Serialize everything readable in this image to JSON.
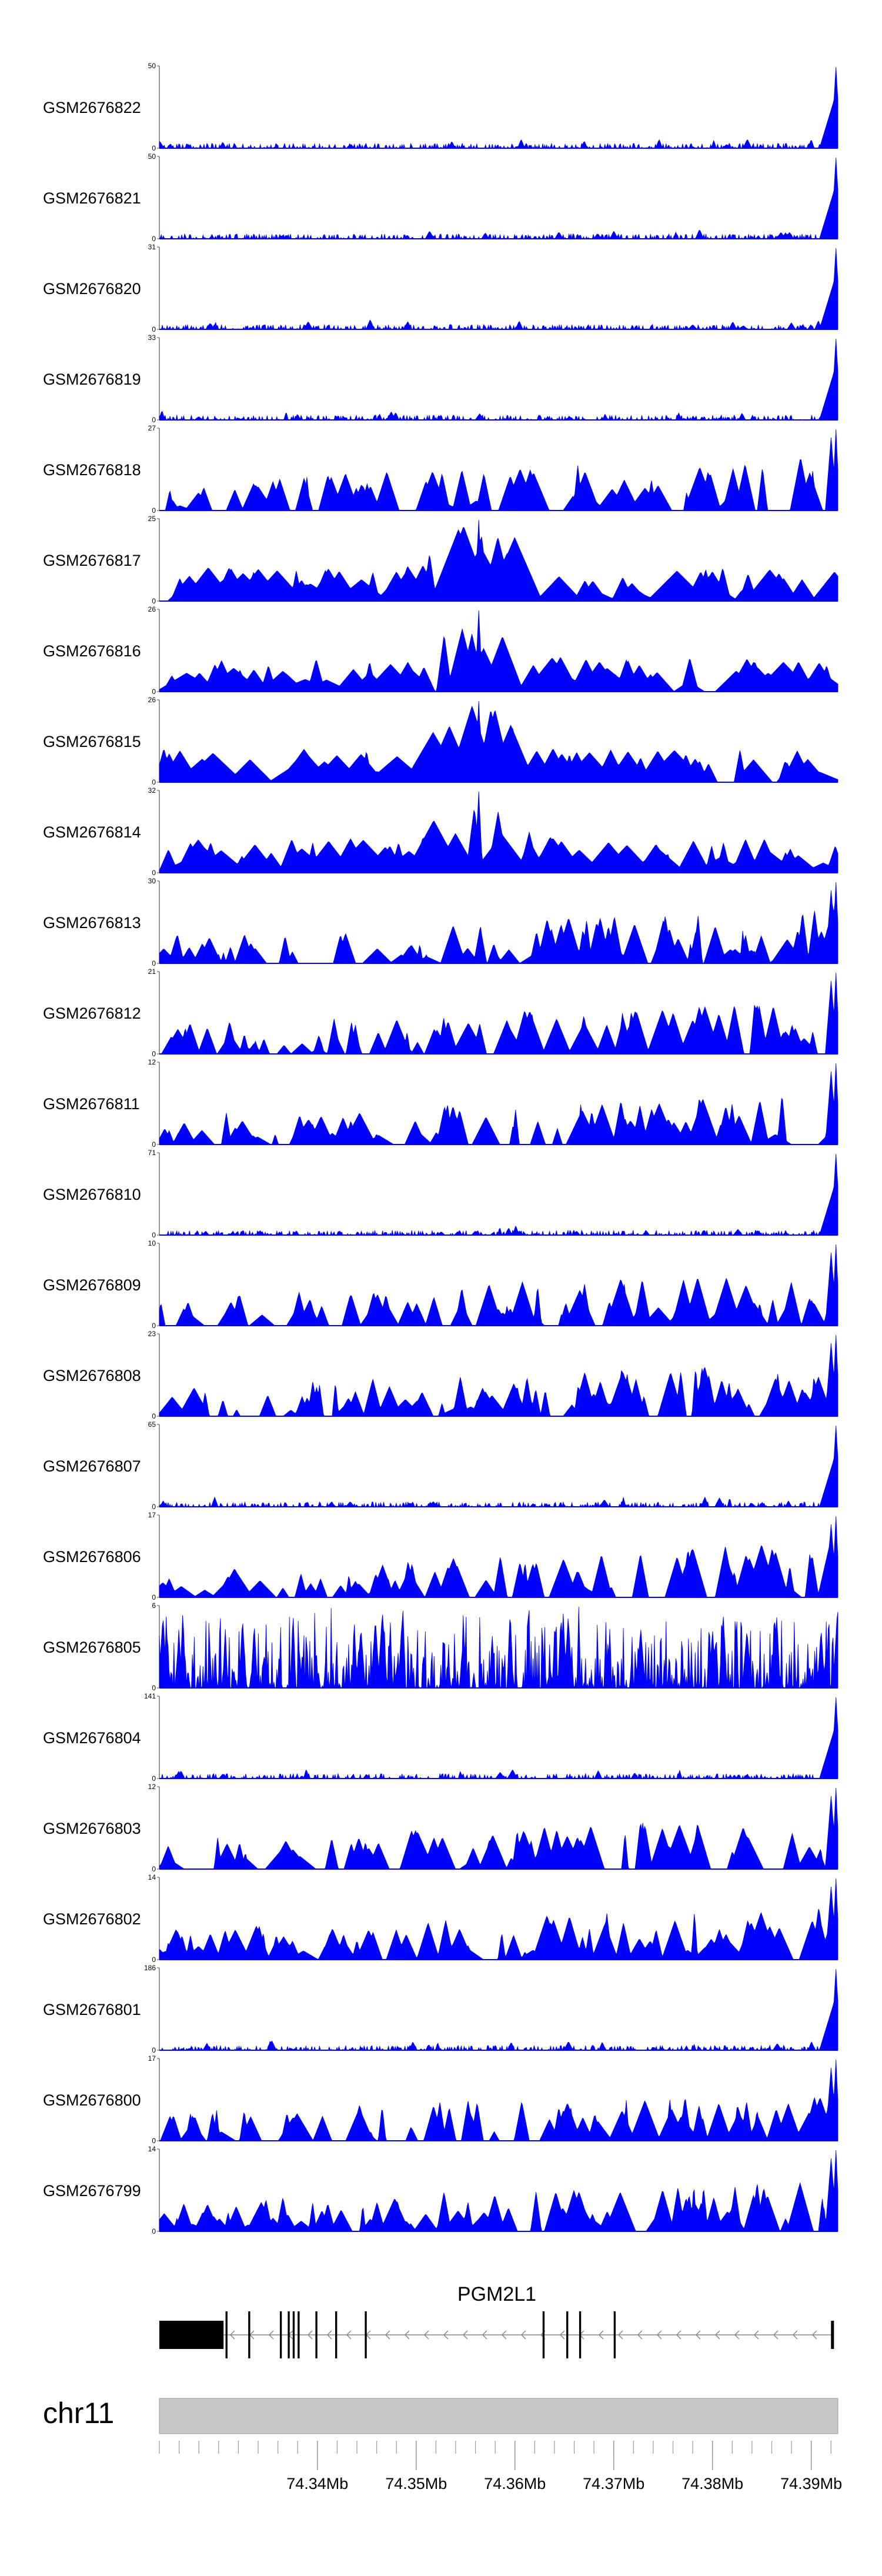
{
  "chart_data": {
    "type": "area",
    "color": "#0000ff",
    "x_range_mb": [
      74.324,
      74.3927
    ],
    "tracks": [
      {
        "name": "GSM2676822",
        "ymax": "50",
        "ymin": "0",
        "max": 50,
        "profile": "rightpeak",
        "seed": 11
      },
      {
        "name": "GSM2676821",
        "ymax": "50",
        "ymin": "0",
        "max": 50,
        "profile": "rightpeak",
        "seed": 12
      },
      {
        "name": "GSM2676820",
        "ymax": "31",
        "ymin": "0",
        "max": 31,
        "profile": "rightpeak",
        "seed": 13
      },
      {
        "name": "GSM2676819",
        "ymax": "33",
        "ymin": "0",
        "max": 33,
        "profile": "rightpeak",
        "seed": 14
      },
      {
        "name": "GSM2676818",
        "ymax": "27",
        "ymin": "0",
        "max": 27,
        "profile": "spiky",
        "seed": 15
      },
      {
        "name": "GSM2676817",
        "ymax": "25",
        "ymin": "0",
        "max": 25,
        "profile": "center",
        "seed": 16
      },
      {
        "name": "GSM2676816",
        "ymax": "26",
        "ymin": "0",
        "max": 26,
        "profile": "center",
        "seed": 17
      },
      {
        "name": "GSM2676815",
        "ymax": "26",
        "ymin": "0",
        "max": 26,
        "profile": "center",
        "seed": 18
      },
      {
        "name": "GSM2676814",
        "ymax": "32",
        "ymin": "0",
        "max": 32,
        "profile": "center",
        "seed": 19
      },
      {
        "name": "GSM2676813",
        "ymax": "30",
        "ymin": "0",
        "max": 30,
        "profile": "spiky",
        "seed": 20
      },
      {
        "name": "GSM2676812",
        "ymax": "21",
        "ymin": "0",
        "max": 21,
        "profile": "spiky",
        "seed": 21
      },
      {
        "name": "GSM2676811",
        "ymax": "12",
        "ymin": "0",
        "max": 12,
        "profile": "spiky",
        "seed": 22
      },
      {
        "name": "GSM2676810",
        "ymax": "71",
        "ymin": "0",
        "max": 71,
        "profile": "rightpeak",
        "seed": 23
      },
      {
        "name": "GSM2676809",
        "ymax": "10",
        "ymin": "0",
        "max": 10,
        "profile": "spiky",
        "seed": 24
      },
      {
        "name": "GSM2676808",
        "ymax": "23",
        "ymin": "0",
        "max": 23,
        "profile": "spiky",
        "seed": 25
      },
      {
        "name": "GSM2676807",
        "ymax": "65",
        "ymin": "0",
        "max": 65,
        "profile": "rightpeak",
        "seed": 26
      },
      {
        "name": "GSM2676806",
        "ymax": "17",
        "ymin": "0",
        "max": 17,
        "profile": "spiky",
        "seed": 27
      },
      {
        "name": "GSM2676805",
        "ymax": "6",
        "ymin": "0",
        "max": 6,
        "profile": "dense",
        "seed": 28
      },
      {
        "name": "GSM2676804",
        "ymax": "141",
        "ymin": "0",
        "max": 141,
        "profile": "rightpeak",
        "seed": 29
      },
      {
        "name": "GSM2676803",
        "ymax": "12",
        "ymin": "0",
        "max": 12,
        "profile": "spiky",
        "seed": 30
      },
      {
        "name": "GSM2676802",
        "ymax": "14",
        "ymin": "0",
        "max": 14,
        "profile": "spiky",
        "seed": 31
      },
      {
        "name": "GSM2676801",
        "ymax": "186",
        "ymin": "0",
        "max": 186,
        "profile": "rightpeak",
        "seed": 32
      },
      {
        "name": "GSM2676800",
        "ymax": "17",
        "ymin": "0",
        "max": 17,
        "profile": "spiky",
        "seed": 33
      },
      {
        "name": "GSM2676799",
        "ymax": "14",
        "ymin": "0",
        "max": 14,
        "profile": "spiky",
        "seed": 34
      }
    ],
    "gene": {
      "name": "PGM2L1",
      "strand": "-",
      "exons_mb": [
        [
          74.324,
          74.3305,
          "thick"
        ],
        [
          74.3307,
          74.3309,
          "thin"
        ],
        [
          74.333,
          74.3332,
          "thin"
        ],
        [
          74.3362,
          74.3364,
          "thin"
        ],
        [
          74.337,
          74.3372,
          "thin"
        ],
        [
          74.3375,
          74.3377,
          "thin"
        ],
        [
          74.338,
          74.3382,
          "thin"
        ],
        [
          74.3398,
          74.34,
          "thin"
        ],
        [
          74.3418,
          74.342,
          "thin"
        ],
        [
          74.3448,
          74.345,
          "thin"
        ],
        [
          74.3628,
          74.363,
          "thin"
        ],
        [
          74.3652,
          74.3654,
          "thin"
        ],
        [
          74.3665,
          74.3667,
          "thin"
        ],
        [
          74.37,
          74.3702,
          "thin"
        ],
        [
          74.392,
          74.3923,
          "thick"
        ]
      ]
    },
    "chromosome": "chr11",
    "x_ticks": [
      {
        "value": 74.34,
        "label": "74.34Mb"
      },
      {
        "value": 74.35,
        "label": "74.35Mb"
      },
      {
        "value": 74.36,
        "label": "74.36Mb"
      },
      {
        "value": 74.37,
        "label": "74.37Mb"
      },
      {
        "value": 74.38,
        "label": "74.38Mb"
      },
      {
        "value": 74.39,
        "label": "74.39Mb"
      }
    ],
    "minor_tick_step_mb": 0.002
  }
}
